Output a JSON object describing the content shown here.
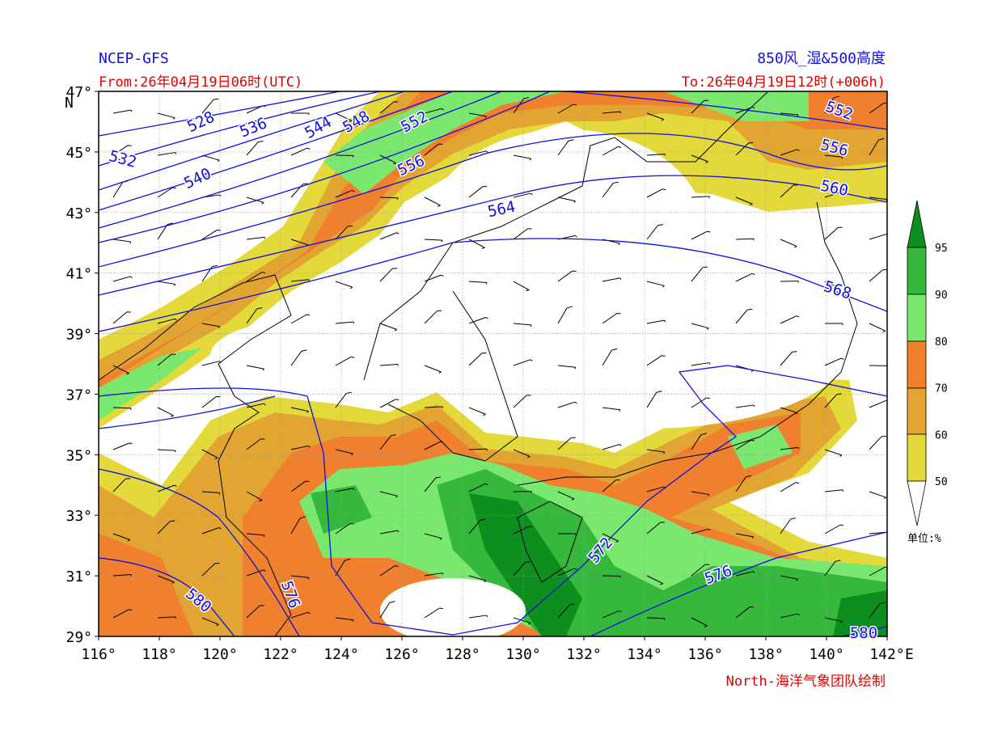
{
  "header": {
    "source": "NCEP-GFS",
    "product": "850风_湿&500高度",
    "from": "From:26年04月19日06时(UTC)",
    "to": "To:26年04月19日12时(+006h)",
    "credit": "North-海洋气象团队绘制"
  },
  "axes": {
    "lat_labels": [
      "47°",
      "45°",
      "43°",
      "41°",
      "39°",
      "37°",
      "35°",
      "33°",
      "31°",
      "29°"
    ],
    "lat_unit": "N",
    "lon_labels": [
      "116°",
      "118°",
      "120°",
      "122°",
      "124°",
      "126°",
      "128°",
      "130°",
      "132°",
      "134°",
      "136°",
      "138°",
      "140°",
      "142°"
    ],
    "lon_unit": "E"
  },
  "contour_labels": [
    528,
    536,
    544,
    548,
    552,
    532,
    540,
    556,
    564,
    552,
    556,
    560,
    568,
    572,
    576,
    580,
    576,
    580
  ],
  "colorbar": {
    "ticks": [
      95,
      90,
      80,
      70,
      60,
      50
    ],
    "unit": "单位:%"
  }
}
